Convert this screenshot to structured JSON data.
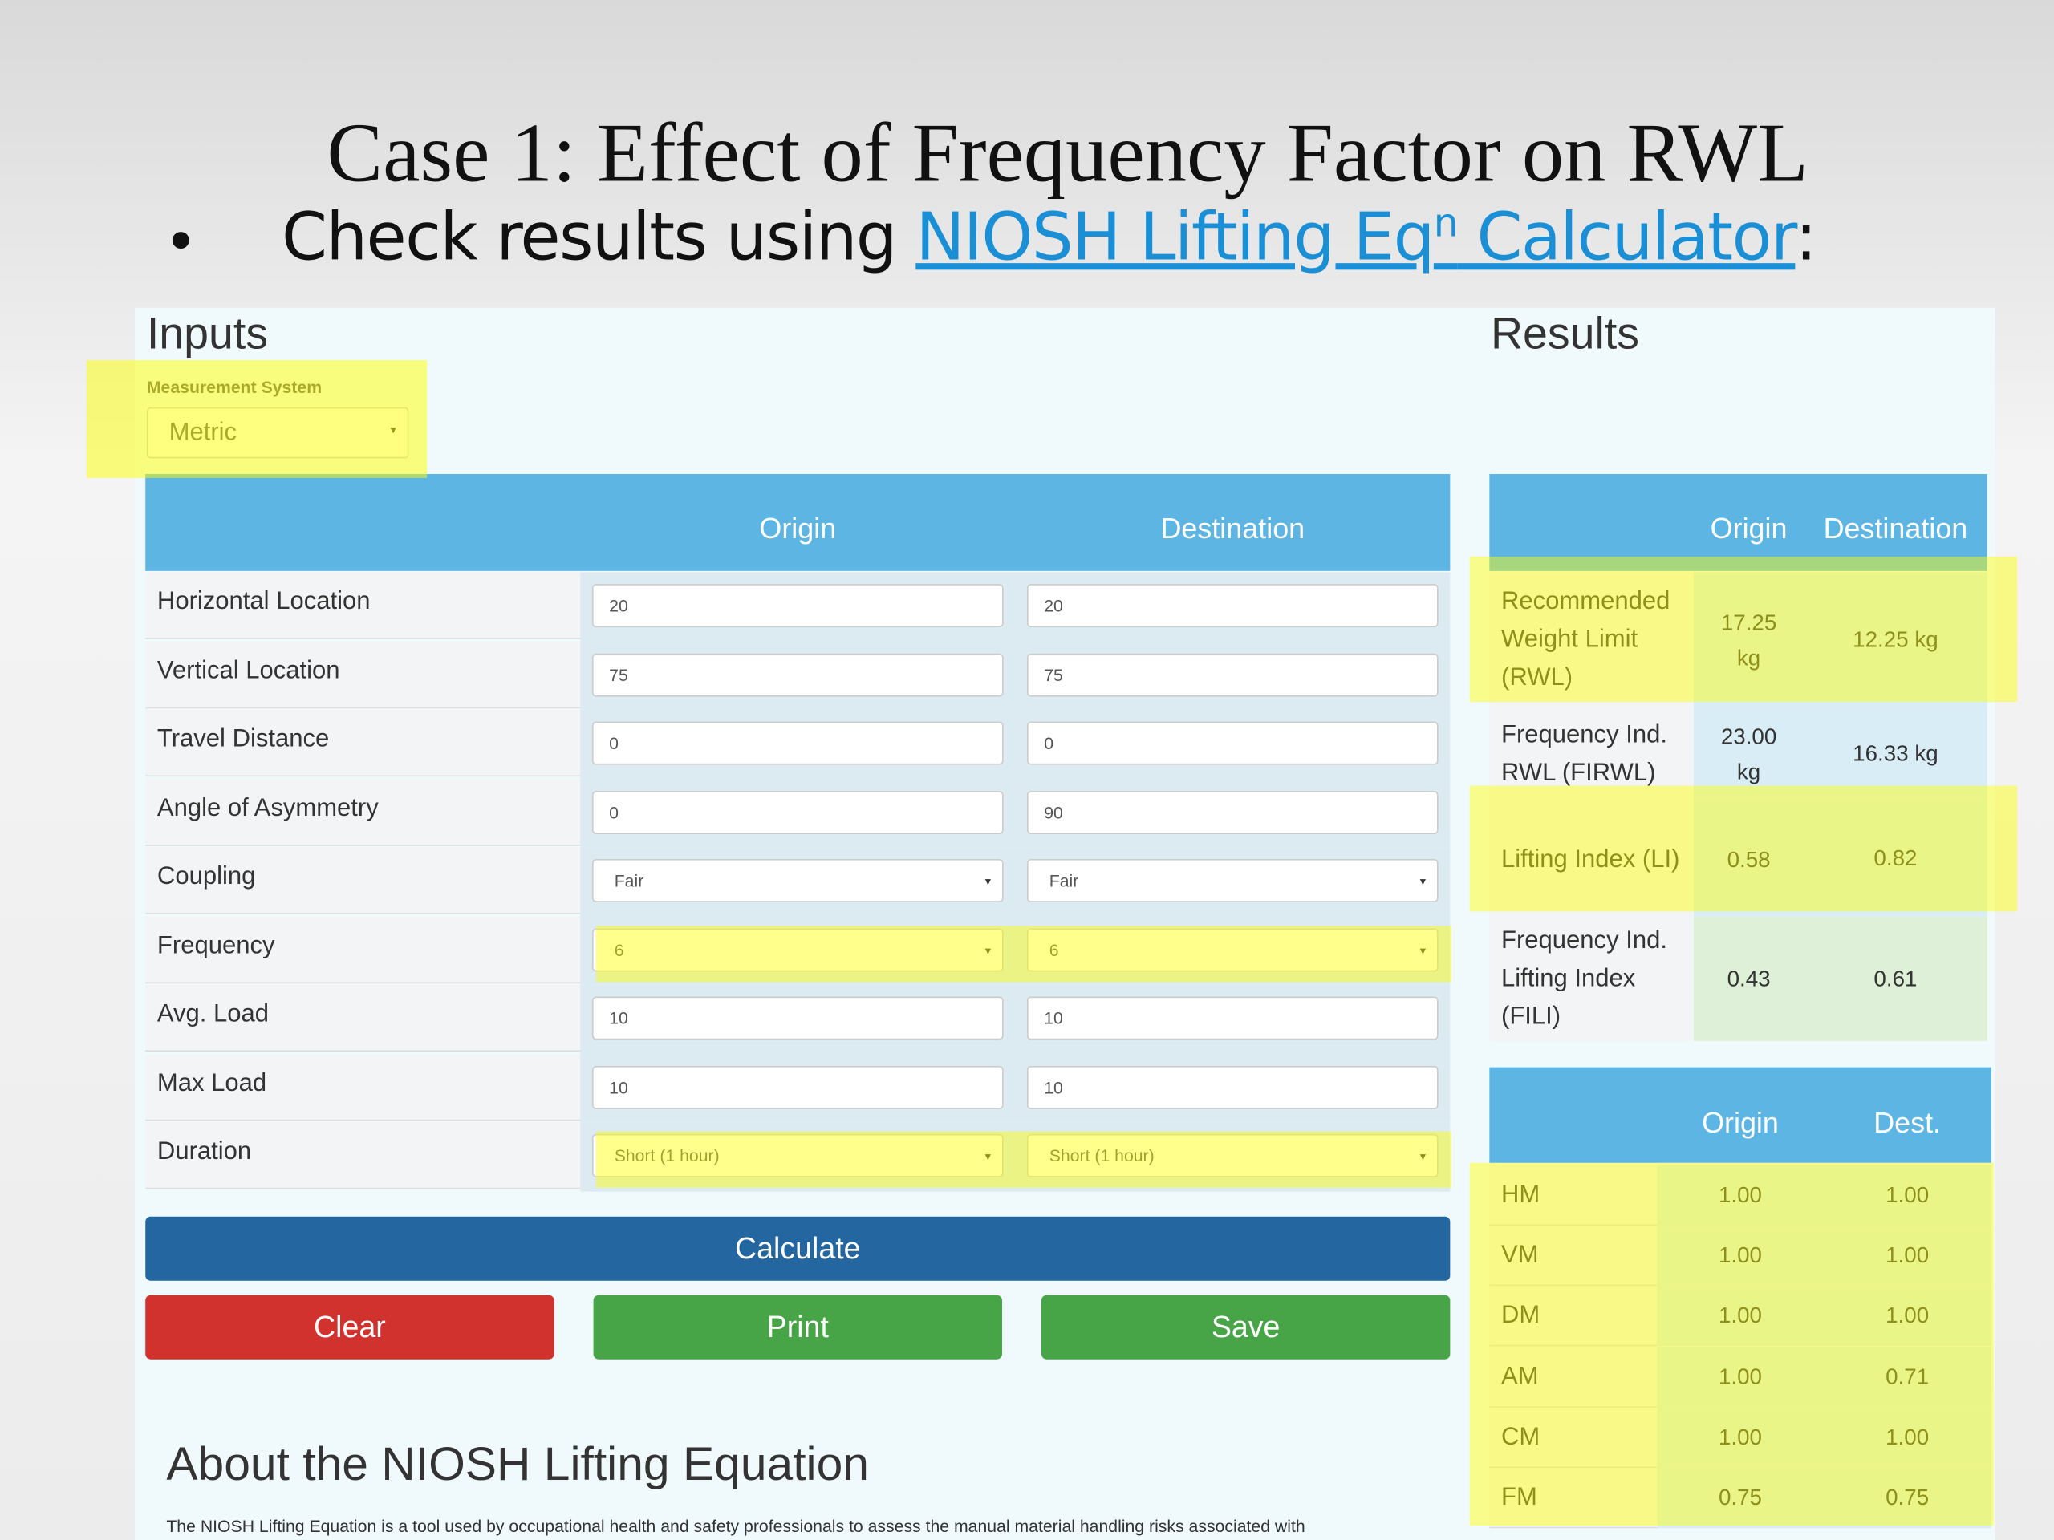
{
  "slide": {
    "title": "Case 1: Effect of Frequency Factor on RWL",
    "bullet_prefix": "Check results using ",
    "link_text": "NIOSH Lifting Eq",
    "link_sup": "n",
    "link_tail": " Calculator",
    "bullet_suffix": ":"
  },
  "inputs": {
    "heading": "Inputs",
    "measurement_label": "Measurement System",
    "measurement_value": "Metric",
    "columns": [
      "Origin",
      "Destination"
    ],
    "rows": [
      {
        "label": "Horizontal Location",
        "origin": "20",
        "destination": "20",
        "select": false,
        "highlight": false
      },
      {
        "label": "Vertical Location",
        "origin": "75",
        "destination": "75",
        "select": false,
        "highlight": false
      },
      {
        "label": "Travel Distance",
        "origin": "0",
        "destination": "0",
        "select": false,
        "highlight": false
      },
      {
        "label": "Angle of Asymmetry",
        "origin": "0",
        "destination": "90",
        "select": false,
        "highlight": false
      },
      {
        "label": "Coupling",
        "origin": "Fair",
        "destination": "Fair",
        "select": true,
        "highlight": false
      },
      {
        "label": "Frequency",
        "origin": "6",
        "destination": "6",
        "select": true,
        "highlight": true
      },
      {
        "label": "Avg. Load",
        "origin": "10",
        "destination": "10",
        "select": false,
        "highlight": false
      },
      {
        "label": "Max Load",
        "origin": "10",
        "destination": "10",
        "select": false,
        "highlight": false
      },
      {
        "label": "Duration",
        "origin": "Short (1 hour)",
        "destination": "Short (1 hour)",
        "select": true,
        "highlight": true
      }
    ]
  },
  "buttons": {
    "calculate": "Calculate",
    "clear": "Clear",
    "print": "Print",
    "save": "Save"
  },
  "about": {
    "heading": "About the NIOSH Lifting Equation",
    "text": "The NIOSH Lifting Equation is a tool used by occupational health and safety professionals to assess the manual material handling risks associated with"
  },
  "results": {
    "heading": "Results",
    "table1": {
      "columns": [
        "Origin",
        "Destination"
      ],
      "rows": [
        {
          "label": "Recommended Weight Limit (RWL)",
          "origin": "17.25 kg",
          "destination": "12.25 kg",
          "highlight": true
        },
        {
          "label": "Frequency Ind. RWL (FIRWL)",
          "origin": "23.00 kg",
          "destination": "16.33 kg",
          "highlight": false
        },
        {
          "label": "Lifting Index (LI)",
          "origin": "0.58",
          "destination": "0.82",
          "highlight": true
        },
        {
          "label": "Frequency Ind. Lifting Index (FILI)",
          "origin": "0.43",
          "destination": "0.61",
          "highlight": false
        }
      ]
    },
    "table2": {
      "columns": [
        "Origin",
        "Dest."
      ],
      "rows": [
        {
          "label": "HM",
          "origin": "1.00",
          "destination": "1.00"
        },
        {
          "label": "VM",
          "origin": "1.00",
          "destination": "1.00"
        },
        {
          "label": "DM",
          "origin": "1.00",
          "destination": "1.00"
        },
        {
          "label": "AM",
          "origin": "1.00",
          "destination": "0.71"
        },
        {
          "label": "CM",
          "origin": "1.00",
          "destination": "1.00"
        },
        {
          "label": "FM",
          "origin": "0.75",
          "destination": "0.75"
        }
      ]
    }
  }
}
